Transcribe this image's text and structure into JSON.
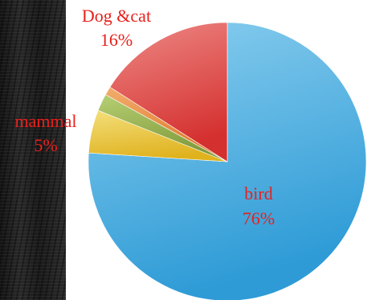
{
  "chart_data": {
    "type": "pie",
    "title": "",
    "start_angle_deg": 0,
    "direction": "clockwise",
    "slices": [
      {
        "label": "bird",
        "value": 76,
        "value_label": "76%",
        "color": "#2e9bd6",
        "color_light": "#8ccfef"
      },
      {
        "label": "mammal",
        "value": 5,
        "value_label": "5%",
        "color": "#e0b21e",
        "color_light": "#f3df7c"
      },
      {
        "label": "",
        "value": 2,
        "value_label": "",
        "color": "#7f9a3a",
        "color_light": "#b6cf74"
      },
      {
        "label": "",
        "value": 1,
        "value_label": "",
        "color": "#e0782a",
        "color_light": "#f2ad6e"
      },
      {
        "label": "Dog &cat",
        "value": 16,
        "value_label": "16%",
        "color": "#d4302f",
        "color_light": "#ee8a86"
      }
    ]
  }
}
